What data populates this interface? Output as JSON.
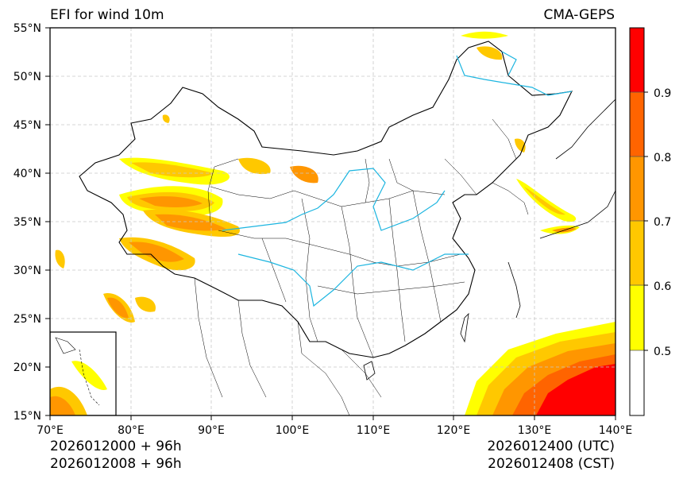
{
  "header": {
    "title": "EFI for wind 10m",
    "model": "CMA-GEPS"
  },
  "footer": {
    "init_utc": "2026012000 + 96h",
    "init_cst": "2026012008 + 96h",
    "valid_utc": "2026012400 (UTC)",
    "valid_cst": "2026012408 (CST)"
  },
  "map": {
    "lon_labels": [
      "70°E",
      "80°E",
      "90°E",
      "100°E",
      "110°E",
      "120°E",
      "130°E",
      "140°E"
    ],
    "lat_labels": [
      "55°N",
      "50°N",
      "45°N",
      "40°N",
      "35°N",
      "30°N",
      "25°N",
      "20°N",
      "15°N"
    ]
  },
  "colorbar": {
    "labels": [
      "0.5",
      "0.6",
      "0.7",
      "0.8",
      "0.9"
    ],
    "colors": [
      "#ffffff",
      "#ffff00",
      "#ffc800",
      "#ff9600",
      "#ff6400",
      "#ff0000"
    ]
  }
}
